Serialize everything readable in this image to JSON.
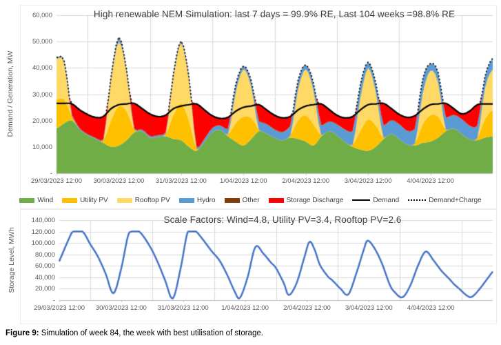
{
  "figure_caption": {
    "prefix": "Figure 9:",
    "text": " Simulation of week 84, the week with best utilisation of storage."
  },
  "chart_data": [
    {
      "id": "generation",
      "type": "area",
      "title": "High renewable NEM Simulation: last 7 days = 99.9% RE, Last 104 weeks =98.8% RE",
      "ylabel": "Demand / Generation, MW",
      "ylim": [
        0,
        60000
      ],
      "ytick_step": 10000,
      "ytick_labels": [
        "-",
        "10,000",
        "20,000",
        "30,000",
        "40,000",
        "50,000",
        "60,000"
      ],
      "x_start": "29/03/2023 12:00",
      "x_hours_range": [
        0,
        168
      ],
      "sample_step_hours": 3,
      "grid": "on",
      "xtick_labels": [
        "29/03/2023 12:00",
        "30/03/2023 12:00",
        "31/03/2023 12:00",
        "1/04/2023 12:00",
        "2/04/2023 12:00",
        "3/04/2023 12:00",
        "4/04/2023 12:00"
      ],
      "series": [
        {
          "name": "Wind",
          "role": "area",
          "color": "#70AD47",
          "values_mw": [
            17000,
            19000,
            20000,
            16500,
            14500,
            13000,
            11500,
            10000,
            10500,
            12500,
            15500,
            16000,
            13500,
            13800,
            14000,
            13000,
            12500,
            10000,
            8500,
            12000,
            15500,
            16500,
            14000,
            12000,
            10500,
            13000,
            16000,
            15000,
            13500,
            12500,
            13500,
            13000,
            12000,
            10500,
            14000,
            16000,
            14500,
            12000,
            10000,
            9000,
            8500,
            10000,
            13000,
            15000,
            13000,
            11000,
            10500,
            11500,
            12000,
            13500,
            16000,
            17000,
            15000,
            13000,
            12500,
            13500,
            14000
          ]
        },
        {
          "name": "Utility PV",
          "role": "area",
          "color": "#FFC000",
          "values_mw": [
            11000,
            9000,
            1500,
            0,
            0,
            0,
            1000,
            10000,
            15000,
            11000,
            1000,
            0,
            0,
            0,
            800,
            9000,
            14000,
            10000,
            800,
            0,
            0,
            0,
            800,
            7000,
            11000,
            8000,
            500,
            0,
            0,
            0,
            800,
            7000,
            10000,
            8000,
            500,
            0,
            0,
            0,
            800,
            7000,
            12000,
            8000,
            500,
            0,
            0,
            0,
            800,
            7000,
            10000,
            8000,
            500,
            0,
            0,
            0,
            800,
            7000,
            10000
          ]
        },
        {
          "name": "Rooftop PV",
          "role": "area",
          "color": "#FFD966",
          "values_mw": [
            15500,
            14000,
            0,
            0,
            0,
            0,
            0,
            16000,
            24500,
            15000,
            0,
            0,
            0,
            0,
            0,
            15000,
            23000,
            16000,
            0,
            0,
            0,
            0,
            0,
            12000,
            18000,
            12000,
            0,
            0,
            0,
            0,
            0,
            12000,
            17500,
            13000,
            0,
            0,
            0,
            0,
            0,
            13000,
            19500,
            13000,
            0,
            0,
            0,
            0,
            0,
            12000,
            17000,
            13000,
            0,
            0,
            0,
            0,
            0,
            12000,
            15500
          ]
        },
        {
          "name": "Hydro",
          "role": "area",
          "color": "#5B9BD5",
          "values_mw": [
            300,
            300,
            400,
            300,
            200,
            300,
            300,
            400,
            1500,
            500,
            300,
            400,
            500,
            500,
            500,
            400,
            500,
            400,
            500,
            1000,
            1500,
            1500,
            2000,
            2500,
            1000,
            2000,
            3000,
            3500,
            3000,
            3000,
            3500,
            3000,
            1500,
            2500,
            3500,
            3500,
            4000,
            4500,
            5000,
            4500,
            2000,
            3000,
            4500,
            5000,
            5500,
            5000,
            5500,
            5000,
            2500,
            3500,
            4500,
            5000,
            5500,
            5000,
            4500,
            4000,
            4000
          ]
        },
        {
          "name": "Other",
          "role": "area",
          "color": "#843C0C",
          "constant_mw": 150
        },
        {
          "name": "Storage Discharge",
          "role": "area-computed",
          "color": "#FF0000",
          "formula": "max(0, Demand - sum(Wind,Utility PV,Rooftop PV,Hydro,Other))"
        },
        {
          "name": "Demand",
          "role": "line",
          "color": "#000000",
          "values_mw": [
            26500,
            26500,
            26300,
            24000,
            22300,
            21200,
            21500,
            24500,
            26000,
            26300,
            26500,
            24500,
            22500,
            21500,
            22000,
            24500,
            25500,
            26000,
            26300,
            24000,
            21800,
            20800,
            21200,
            23500,
            25000,
            25500,
            26000,
            24000,
            22000,
            21000,
            21500,
            24000,
            25500,
            26000,
            26300,
            24200,
            22000,
            21000,
            21500,
            24000,
            26000,
            26300,
            26500,
            24500,
            22300,
            21200,
            21800,
            24200,
            26000,
            26300,
            26500,
            24500,
            22500,
            23500,
            26000,
            26300,
            26300
          ]
        },
        {
          "name": "Demand+Charge",
          "role": "line-dotted",
          "color": "#000000",
          "formula": "max(Demand, total generation)"
        }
      ],
      "legend": [
        {
          "label": "Wind",
          "marker": "area",
          "color": "#70AD47"
        },
        {
          "label": "Utility PV",
          "marker": "area",
          "color": "#FFC000"
        },
        {
          "label": "Rooftop PV",
          "marker": "area",
          "color": "#FFD966"
        },
        {
          "label": "Hydro",
          "marker": "area",
          "color": "#5B9BD5"
        },
        {
          "label": "Other",
          "marker": "area",
          "color": "#843C0C"
        },
        {
          "label": "Storage Discharge",
          "marker": "area",
          "color": "#FF0000"
        },
        {
          "label": "Demand",
          "marker": "line-solid",
          "color": "#000000"
        },
        {
          "label": "Demand+Charge",
          "marker": "line-dotted",
          "color": "#000000"
        }
      ]
    },
    {
      "id": "storage",
      "type": "line",
      "title": "Scale Factors: Wind=4.8, Utility PV=3.4, Rooftop PV=2.6",
      "ylabel": "Storage Level, MWh",
      "ylim": [
        0,
        140000
      ],
      "ytick_step": 20000,
      "ytick_labels": [
        "-",
        "20,000",
        "40,000",
        "60,000",
        "80,000",
        "100,000",
        "120,000",
        "140,000"
      ],
      "x_start": "29/03/2023 12:00",
      "x_hours_range": [
        0,
        168
      ],
      "storage_cap_mwh": 120000,
      "grid": "on",
      "xtick_labels": [
        "29/03/2023 12:00",
        "30/03/2023 12:00",
        "31/03/2023 12:00",
        "1/04/2023 12:00",
        "2/04/2023 12:00",
        "3/04/2023 12:00",
        "4/04/2023 12:00"
      ],
      "series": [
        {
          "name": "Storage Level",
          "role": "line",
          "color": "#4472C4",
          "points_h_mwh": [
            [
              0,
              68000
            ],
            [
              4,
              110000
            ],
            [
              5.5,
              120000
            ],
            [
              9,
              120000
            ],
            [
              12,
              98000
            ],
            [
              15,
              76000
            ],
            [
              18,
              46000
            ],
            [
              21,
              12000
            ],
            [
              24,
              55000
            ],
            [
              26.5,
              110000
            ],
            [
              28,
              120000
            ],
            [
              31,
              120000
            ],
            [
              35,
              95000
            ],
            [
              38,
              68000
            ],
            [
              41,
              35000
            ],
            [
              44,
              3000
            ],
            [
              47,
              55000
            ],
            [
              49.5,
              115000
            ],
            [
              51,
              120000
            ],
            [
              53,
              120000
            ],
            [
              56,
              104000
            ],
            [
              59,
              86000
            ],
            [
              62,
              70000
            ],
            [
              65,
              45000
            ],
            [
              68,
              15000
            ],
            [
              70,
              4000
            ],
            [
              73,
              40000
            ],
            [
              76,
              93000
            ],
            [
              79,
              82000
            ],
            [
              82,
              66000
            ],
            [
              84,
              56000
            ],
            [
              87,
              30000
            ],
            [
              89,
              9000
            ],
            [
              92,
              30000
            ],
            [
              95,
              75000
            ],
            [
              97,
              102000
            ],
            [
              99,
              88000
            ],
            [
              101,
              62000
            ],
            [
              104,
              42000
            ],
            [
              106,
              34000
            ],
            [
              109,
              20000
            ],
            [
              112,
              10000
            ],
            [
              115,
              45000
            ],
            [
              118,
              88000
            ],
            [
              119.5,
              104000
            ],
            [
              122,
              92000
            ],
            [
              125,
              65000
            ],
            [
              128,
              28000
            ],
            [
              130,
              14000
            ],
            [
              133,
              5000
            ],
            [
              136,
              25000
            ],
            [
              139,
              60000
            ],
            [
              142,
              85000
            ],
            [
              145,
              70000
            ],
            [
              148,
              52000
            ],
            [
              151,
              38000
            ],
            [
              153,
              28000
            ],
            [
              155,
              20000
            ],
            [
              158,
              8000
            ],
            [
              160,
              6000
            ],
            [
              163,
              20000
            ],
            [
              166,
              38000
            ],
            [
              168,
              50000
            ]
          ]
        }
      ]
    }
  ]
}
